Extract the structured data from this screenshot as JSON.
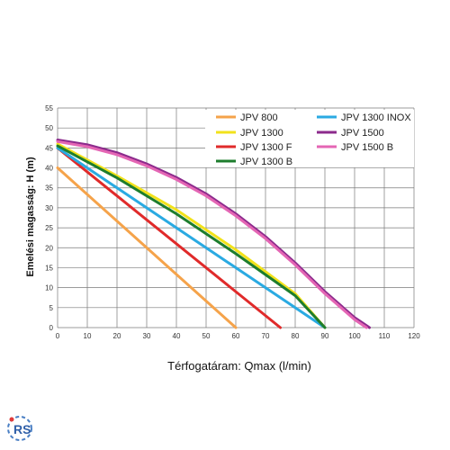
{
  "chart_data": {
    "type": "line",
    "xlabel": "Térfogatáram: Qmax (l/min)",
    "ylabel": "Emelési magasság: H (m)",
    "xlim": [
      0,
      120
    ],
    "ylim": [
      0,
      55
    ],
    "x_ticks": [
      "0",
      "10",
      "20",
      "30",
      "40",
      "50",
      "60",
      "70",
      "80",
      "90",
      "100",
      "110",
      "120"
    ],
    "y_ticks": [
      "0",
      "5",
      "10",
      "15",
      "20",
      "25",
      "30",
      "35",
      "40",
      "45",
      "50",
      "55"
    ],
    "grid": true,
    "legend_placement": "top-right",
    "series": [
      {
        "name": "JPV 800",
        "color": "#f5a34a",
        "x": [
          0,
          60
        ],
        "y": [
          40,
          0
        ]
      },
      {
        "name": "JPV 1300",
        "color": "#f2e21b",
        "x": [
          0,
          20,
          40,
          60,
          80,
          90
        ],
        "y": [
          46,
          38,
          29.5,
          19.5,
          8.5,
          0
        ]
      },
      {
        "name": "JPV 1300 F",
        "color": "#e02a2a",
        "x": [
          0,
          75
        ],
        "y": [
          45,
          0
        ]
      },
      {
        "name": "JPV 1300 B",
        "color": "#1d7d2d",
        "x": [
          0,
          20,
          40,
          60,
          80,
          90
        ],
        "y": [
          45.5,
          37.5,
          28.5,
          18.5,
          8,
          0
        ]
      },
      {
        "name": "JPV 1300 INOX",
        "color": "#2aaae2",
        "x": [
          0,
          90
        ],
        "y": [
          45,
          0
        ]
      },
      {
        "name": "JPV 1500",
        "color": "#8c2a8c",
        "x": [
          0,
          10,
          20,
          30,
          40,
          50,
          60,
          70,
          80,
          90,
          100,
          105
        ],
        "y": [
          47,
          45.8,
          43.8,
          41,
          37.6,
          33.5,
          28.5,
          22.8,
          16.2,
          9,
          2.5,
          0
        ]
      },
      {
        "name": "JPV 1500 B",
        "color": "#e466b4",
        "x": [
          0,
          10,
          20,
          30,
          40,
          50,
          60,
          70,
          80,
          90,
          100,
          104
        ],
        "y": [
          46.6,
          45.3,
          43.3,
          40.5,
          37.1,
          33,
          28,
          22.3,
          15.7,
          8.5,
          2,
          0
        ]
      }
    ]
  },
  "logo": {
    "text": "RS"
  }
}
